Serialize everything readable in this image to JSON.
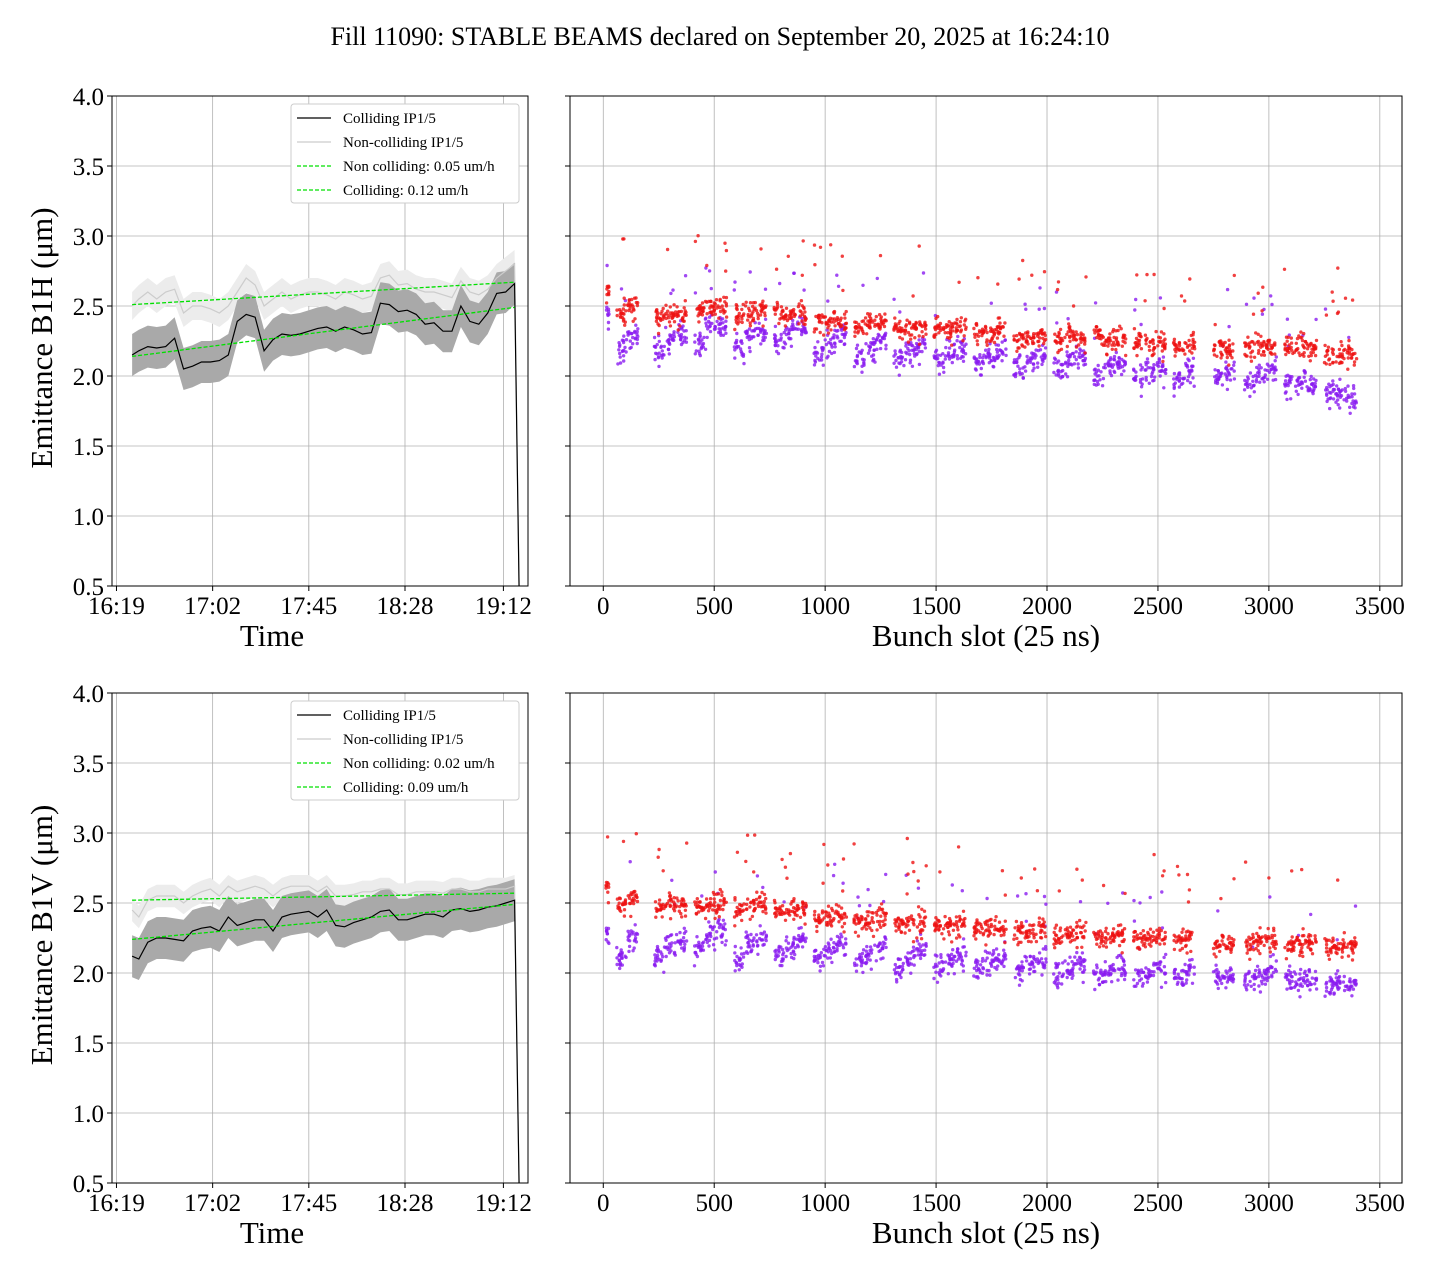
{
  "title": "Fill 11090: STABLE BEAMS declared on September 20, 2025 at 16:24:10",
  "colors": {
    "colliding_line": "#000000",
    "colliding_band": "#a9a9a9",
    "noncolliding_line": "#cccccc",
    "noncolliding_band": "#ececec",
    "fit": "#00e000",
    "scatter_high": "#ee1111",
    "scatter_low": "#8a1cf0",
    "grid": "#b0b0b0"
  },
  "chart_data": [
    {
      "type": "line",
      "panel": "B1H-time",
      "xlabel": "Time",
      "ylabel": "Emittance B1H (μm)",
      "ylim": [
        0.5,
        4.0
      ],
      "yticks": [
        "0.5",
        "1.0",
        "1.5",
        "2.0",
        "2.5",
        "3.0",
        "3.5",
        "4.0"
      ],
      "xticks": [
        "16:19",
        "17:02",
        "17:45",
        "18:28",
        "19:12"
      ],
      "xlim_minutes": [
        -2,
        184
      ],
      "grid": true,
      "legend_position": "upper-right",
      "legend": [
        "Colliding IP1/5",
        "Non-colliding IP1/5",
        "Non colliding: 0.05 um/h",
        "Colliding: 0.12 um/h"
      ],
      "x_minutes": [
        7,
        10,
        14,
        18,
        22,
        26,
        30,
        34,
        38,
        42,
        46,
        50,
        54,
        58,
        62,
        66,
        70,
        74,
        78,
        82,
        86,
        90,
        94,
        98,
        102,
        106,
        110,
        114,
        118,
        122,
        126,
        130,
        134,
        138,
        142,
        146,
        150,
        154,
        158,
        162,
        166,
        170,
        174,
        178,
        180
      ],
      "series": [
        {
          "name": "Colliding IP1/5",
          "values": [
            2.15,
            2.18,
            2.21,
            2.2,
            2.21,
            2.27,
            2.05,
            2.07,
            2.1,
            2.1,
            2.11,
            2.15,
            2.39,
            2.44,
            2.42,
            2.18,
            2.26,
            2.3,
            2.29,
            2.3,
            2.32,
            2.34,
            2.35,
            2.32,
            2.35,
            2.33,
            2.3,
            2.31,
            2.52,
            2.51,
            2.46,
            2.47,
            2.44,
            2.37,
            2.38,
            2.32,
            2.32,
            2.5,
            2.39,
            2.37,
            2.45,
            2.59,
            2.6,
            2.66,
            0.5
          ],
          "band": 0.15
        },
        {
          "name": "Non-colliding IP1/5",
          "values": [
            2.5,
            2.55,
            2.6,
            2.55,
            2.6,
            2.62,
            2.45,
            2.5,
            2.5,
            2.48,
            2.45,
            2.5,
            2.6,
            2.7,
            2.65,
            2.5,
            2.55,
            2.6,
            2.55,
            2.58,
            2.6,
            2.6,
            2.58,
            2.55,
            2.6,
            2.58,
            2.55,
            2.57,
            2.7,
            2.72,
            2.65,
            2.66,
            2.62,
            2.6,
            2.6,
            2.58,
            2.56,
            2.68,
            2.6,
            2.58,
            2.62,
            2.7,
            2.75,
            2.8,
            0.5
          ],
          "band": 0.1
        },
        {
          "name": "Non colliding: 0.05 um/h",
          "fit_x": [
            7,
            178
          ],
          "fit_values": [
            2.51,
            2.67
          ]
        },
        {
          "name": "Colliding: 0.12 um/h",
          "fit_x": [
            7,
            178
          ],
          "fit_values": [
            2.14,
            2.49
          ]
        }
      ]
    },
    {
      "type": "scatter",
      "panel": "B1H-bunch",
      "xlabel": "Bunch slot (25 ns)",
      "xticks": [
        "0",
        "500",
        "1000",
        "1500",
        "2000",
        "2500",
        "3000",
        "3500"
      ],
      "xlim": [
        -150,
        3600
      ],
      "ylim": [
        0.5,
        4.0
      ],
      "grid": true,
      "trains_start": [
        0,
        60,
        110,
        230,
        280,
        330,
        410,
        460,
        510,
        590,
        640,
        690,
        770,
        820,
        870,
        950,
        1000,
        1050,
        1130,
        1180,
        1230,
        1310,
        1360,
        1410,
        1490,
        1540,
        1590,
        1670,
        1720,
        1770,
        1850,
        1900,
        1950,
        2030,
        2080,
        2130,
        2210,
        2260,
        2310,
        2390,
        2440,
        2490,
        2570,
        2620,
        2750,
        2800,
        2890,
        2940,
        2990,
        3070,
        3120,
        3170,
        3250,
        3300,
        3350
      ],
      "series": [
        {
          "name": "",
          "color": "high",
          "values": [
            2.62,
            2.45,
            2.5,
            2.42,
            2.44,
            2.45,
            2.47,
            2.5,
            2.5,
            2.45,
            2.47,
            2.48,
            2.46,
            2.44,
            2.46,
            2.4,
            2.4,
            2.38,
            2.36,
            2.38,
            2.4,
            2.36,
            2.34,
            2.35,
            2.34,
            2.33,
            2.36,
            2.32,
            2.3,
            2.34,
            2.28,
            2.28,
            2.3,
            2.26,
            2.3,
            2.28,
            2.3,
            2.27,
            2.26,
            2.25,
            2.22,
            2.24,
            2.21,
            2.23,
            2.2,
            2.2,
            2.2,
            2.22,
            2.22,
            2.22,
            2.22,
            2.2,
            2.17,
            2.17,
            2.16
          ]
        },
        {
          "name": "",
          "color": "low",
          "values": [
            2.45,
            2.2,
            2.28,
            2.2,
            2.27,
            2.3,
            2.25,
            2.35,
            2.36,
            2.22,
            2.3,
            2.32,
            2.25,
            2.33,
            2.35,
            2.17,
            2.24,
            2.3,
            2.12,
            2.2,
            2.26,
            2.12,
            2.18,
            2.22,
            2.12,
            2.18,
            2.2,
            2.1,
            2.15,
            2.2,
            2.06,
            2.12,
            2.16,
            2.06,
            2.1,
            2.15,
            2.0,
            2.08,
            2.1,
            2.0,
            2.05,
            2.08,
            1.98,
            2.05,
            1.98,
            2.05,
            1.96,
            2.02,
            2.05,
            1.96,
            1.98,
            1.96,
            1.9,
            1.88,
            1.85
          ]
        }
      ]
    },
    {
      "type": "line",
      "panel": "B1V-time",
      "xlabel": "Time",
      "ylabel": "Emittance B1V (μm)",
      "ylim": [
        0.5,
        4.0
      ],
      "yticks": [
        "0.5",
        "1.0",
        "1.5",
        "2.0",
        "2.5",
        "3.0",
        "3.5",
        "4.0"
      ],
      "xticks": [
        "16:19",
        "17:02",
        "17:45",
        "18:28",
        "19:12"
      ],
      "xlim_minutes": [
        -2,
        184
      ],
      "grid": true,
      "legend_position": "upper-right",
      "legend": [
        "Colliding IP1/5",
        "Non-colliding IP1/5",
        "Non colliding: 0.02 um/h",
        "Colliding: 0.09 um/h"
      ],
      "x_minutes": [
        7,
        10,
        14,
        18,
        22,
        26,
        30,
        34,
        38,
        42,
        46,
        50,
        54,
        58,
        62,
        66,
        70,
        74,
        78,
        82,
        86,
        90,
        94,
        98,
        102,
        106,
        110,
        114,
        118,
        122,
        126,
        130,
        134,
        138,
        142,
        146,
        150,
        154,
        158,
        162,
        166,
        170,
        174,
        178,
        180
      ],
      "series": [
        {
          "name": "Colliding IP1/5",
          "values": [
            2.12,
            2.1,
            2.22,
            2.25,
            2.25,
            2.24,
            2.23,
            2.3,
            2.32,
            2.33,
            2.3,
            2.4,
            2.34,
            2.36,
            2.38,
            2.38,
            2.3,
            2.4,
            2.42,
            2.43,
            2.44,
            2.4,
            2.45,
            2.34,
            2.33,
            2.36,
            2.38,
            2.4,
            2.44,
            2.45,
            2.38,
            2.38,
            2.4,
            2.42,
            2.42,
            2.4,
            2.45,
            2.46,
            2.44,
            2.45,
            2.47,
            2.48,
            2.5,
            2.52,
            0.5
          ],
          "band": 0.15
        },
        {
          "name": "Non-colliding IP1/5",
          "values": [
            2.45,
            2.4,
            2.52,
            2.55,
            2.55,
            2.55,
            2.5,
            2.55,
            2.58,
            2.6,
            2.55,
            2.62,
            2.58,
            2.6,
            2.62,
            2.6,
            2.55,
            2.6,
            2.62,
            2.62,
            2.62,
            2.58,
            2.62,
            2.55,
            2.55,
            2.56,
            2.58,
            2.58,
            2.6,
            2.6,
            2.56,
            2.56,
            2.58,
            2.58,
            2.58,
            2.57,
            2.6,
            2.6,
            2.58,
            2.58,
            2.6,
            2.6,
            2.6,
            2.62,
            0.5
          ],
          "band": 0.08
        },
        {
          "name": "Non colliding: 0.02 um/h",
          "fit_x": [
            7,
            178
          ],
          "fit_values": [
            2.52,
            2.57
          ]
        },
        {
          "name": "Colliding: 0.09 um/h",
          "fit_x": [
            7,
            178
          ],
          "fit_values": [
            2.24,
            2.49
          ]
        }
      ]
    },
    {
      "type": "scatter",
      "panel": "B1V-bunch",
      "xlabel": "Bunch slot (25 ns)",
      "xticks": [
        "0",
        "500",
        "1000",
        "1500",
        "2000",
        "2500",
        "3000",
        "3500"
      ],
      "xlim": [
        -150,
        3600
      ],
      "ylim": [
        0.5,
        4.0
      ],
      "grid": true,
      "trains_start": [
        0,
        60,
        110,
        230,
        280,
        330,
        410,
        460,
        510,
        590,
        640,
        690,
        770,
        820,
        870,
        950,
        1000,
        1050,
        1130,
        1180,
        1230,
        1310,
        1360,
        1410,
        1490,
        1540,
        1590,
        1670,
        1720,
        1770,
        1850,
        1900,
        1950,
        2030,
        2080,
        2130,
        2210,
        2260,
        2310,
        2390,
        2440,
        2490,
        2570,
        2620,
        2750,
        2800,
        2890,
        2940,
        2990,
        3070,
        3120,
        3170,
        3250,
        3300,
        3350
      ],
      "series": [
        {
          "name": "",
          "color": "high",
          "values": [
            2.62,
            2.5,
            2.55,
            2.47,
            2.5,
            2.5,
            2.48,
            2.5,
            2.5,
            2.45,
            2.48,
            2.5,
            2.45,
            2.45,
            2.46,
            2.4,
            2.4,
            2.4,
            2.38,
            2.38,
            2.4,
            2.36,
            2.36,
            2.38,
            2.34,
            2.35,
            2.36,
            2.32,
            2.32,
            2.33,
            2.3,
            2.3,
            2.32,
            2.27,
            2.28,
            2.3,
            2.27,
            2.27,
            2.28,
            2.26,
            2.26,
            2.27,
            2.24,
            2.26,
            2.22,
            2.23,
            2.22,
            2.24,
            2.25,
            2.2,
            2.21,
            2.22,
            2.18,
            2.2,
            2.2
          ]
        },
        {
          "name": "",
          "color": "low",
          "values": [
            2.3,
            2.12,
            2.25,
            2.12,
            2.2,
            2.25,
            2.18,
            2.28,
            2.3,
            2.12,
            2.22,
            2.25,
            2.15,
            2.2,
            2.25,
            2.12,
            2.18,
            2.22,
            2.08,
            2.15,
            2.2,
            2.06,
            2.12,
            2.18,
            2.05,
            2.1,
            2.12,
            2.03,
            2.08,
            2.12,
            2.02,
            2.08,
            2.1,
            2.0,
            2.05,
            2.08,
            1.98,
            2.02,
            2.06,
            1.98,
            2.0,
            2.04,
            1.98,
            2.02,
            1.98,
            2.0,
            1.96,
            1.98,
            2.02,
            1.95,
            1.96,
            1.96,
            1.92,
            1.93,
            1.93
          ]
        }
      ]
    }
  ]
}
